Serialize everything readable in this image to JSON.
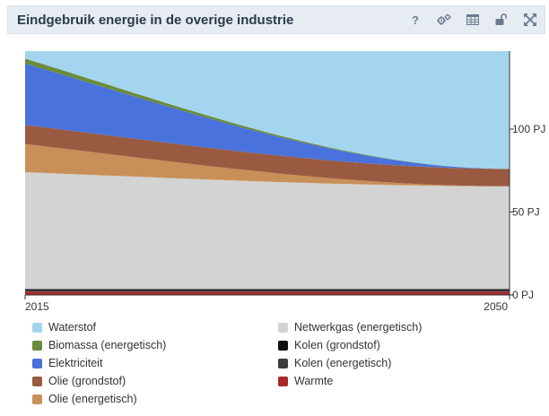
{
  "header": {
    "title": "Eindgebruik energie in de overige industrie",
    "help_label": "?"
  },
  "chart_data": {
    "type": "area",
    "stacked": true,
    "x": [
      2015,
      2050
    ],
    "x_tick_labels": [
      "2015",
      "2050"
    ],
    "y_unit": "PJ",
    "y_tick_labels": [
      "0 PJ",
      "50 PJ",
      "100 PJ"
    ],
    "y_ticks": [
      0,
      50,
      100
    ],
    "ylim": [
      0,
      147
    ],
    "y_axis_side": "right",
    "grid": true,
    "legend_position": "bottom",
    "series": [
      {
        "name": "Warmte",
        "color": "#a8292b",
        "values": [
          2.0,
          2.0
        ]
      },
      {
        "name": "Kolen (energetisch)",
        "color": "#3c3c3c",
        "values": [
          1.0,
          1.0
        ]
      },
      {
        "name": "Kolen (grondstof)",
        "color": "#111111",
        "values": [
          0.5,
          0.5
        ]
      },
      {
        "name": "Netwerkgas (energetisch)",
        "color": "#d3d3d3",
        "values": [
          70.5,
          62.0
        ]
      },
      {
        "name": "Olie (energetisch)",
        "color": "#c89058",
        "values": [
          17.0,
          0.0
        ]
      },
      {
        "name": "Olie (grondstof)",
        "color": "#9a5a42",
        "values": [
          11.5,
          10.5
        ]
      },
      {
        "name": "Elektriciteit",
        "color": "#4a72dc",
        "values": [
          37.0,
          0.0
        ]
      },
      {
        "name": "Biomassa (energetisch)",
        "color": "#6b8c3a",
        "values": [
          3.0,
          0.0
        ]
      },
      {
        "name": "Waterstof",
        "color": "#a3d6ee",
        "values": [
          4.5,
          71.0
        ]
      }
    ]
  },
  "legend": {
    "left": [
      {
        "name": "Waterstof",
        "color": "#a3d6ee"
      },
      {
        "name": "Biomassa (energetisch)",
        "color": "#6b8c3a"
      },
      {
        "name": "Elektriciteit",
        "color": "#4a72dc"
      },
      {
        "name": "Olie (grondstof)",
        "color": "#9a5a42"
      },
      {
        "name": "Olie (energetisch)",
        "color": "#c89058"
      }
    ],
    "right": [
      {
        "name": "Netwerkgas (energetisch)",
        "color": "#d3d3d3"
      },
      {
        "name": "Kolen (grondstof)",
        "color": "#111111"
      },
      {
        "name": "Kolen (energetisch)",
        "color": "#3c3c3c"
      },
      {
        "name": "Warmte",
        "color": "#a8292b"
      }
    ]
  },
  "colors": {
    "header_bg": "#e6ecf2",
    "icon": "#6b7c8f",
    "grid": "#e2e2e2",
    "axis": "#333333"
  }
}
